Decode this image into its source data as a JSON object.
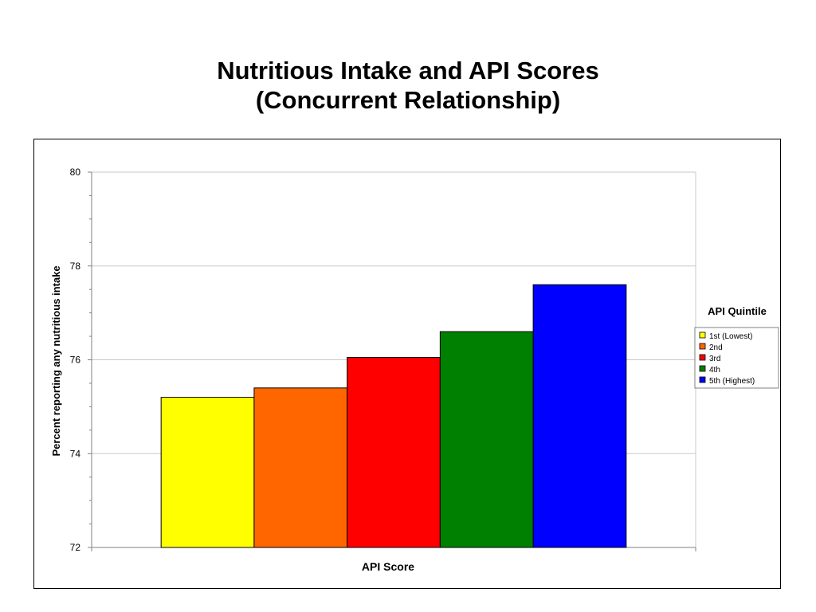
{
  "title": {
    "line1": "Nutritious Intake and API Scores",
    "line2": "(Concurrent Relationship)"
  },
  "chart_data": {
    "type": "bar",
    "xlabel": "API Score",
    "ylabel": "Percent reporting any nutritious intake",
    "ylim": [
      72,
      80
    ],
    "yticks": [
      "72",
      "74",
      "76",
      "78",
      "80"
    ],
    "grid": true,
    "legend": {
      "title": "API Quintile",
      "placement": "right"
    },
    "series": [
      {
        "name": "1st (Lowest)",
        "values": [
          75.2
        ],
        "color": "#ffff00"
      },
      {
        "name": "2nd",
        "values": [
          75.4
        ],
        "color": "#ff6600"
      },
      {
        "name": "3rd",
        "values": [
          76.05
        ],
        "color": "#ff0000"
      },
      {
        "name": "4th",
        "values": [
          76.6
        ],
        "color": "#008000"
      },
      {
        "name": "5th (Highest)",
        "values": [
          77.6
        ],
        "color": "#0000ff"
      }
    ]
  }
}
